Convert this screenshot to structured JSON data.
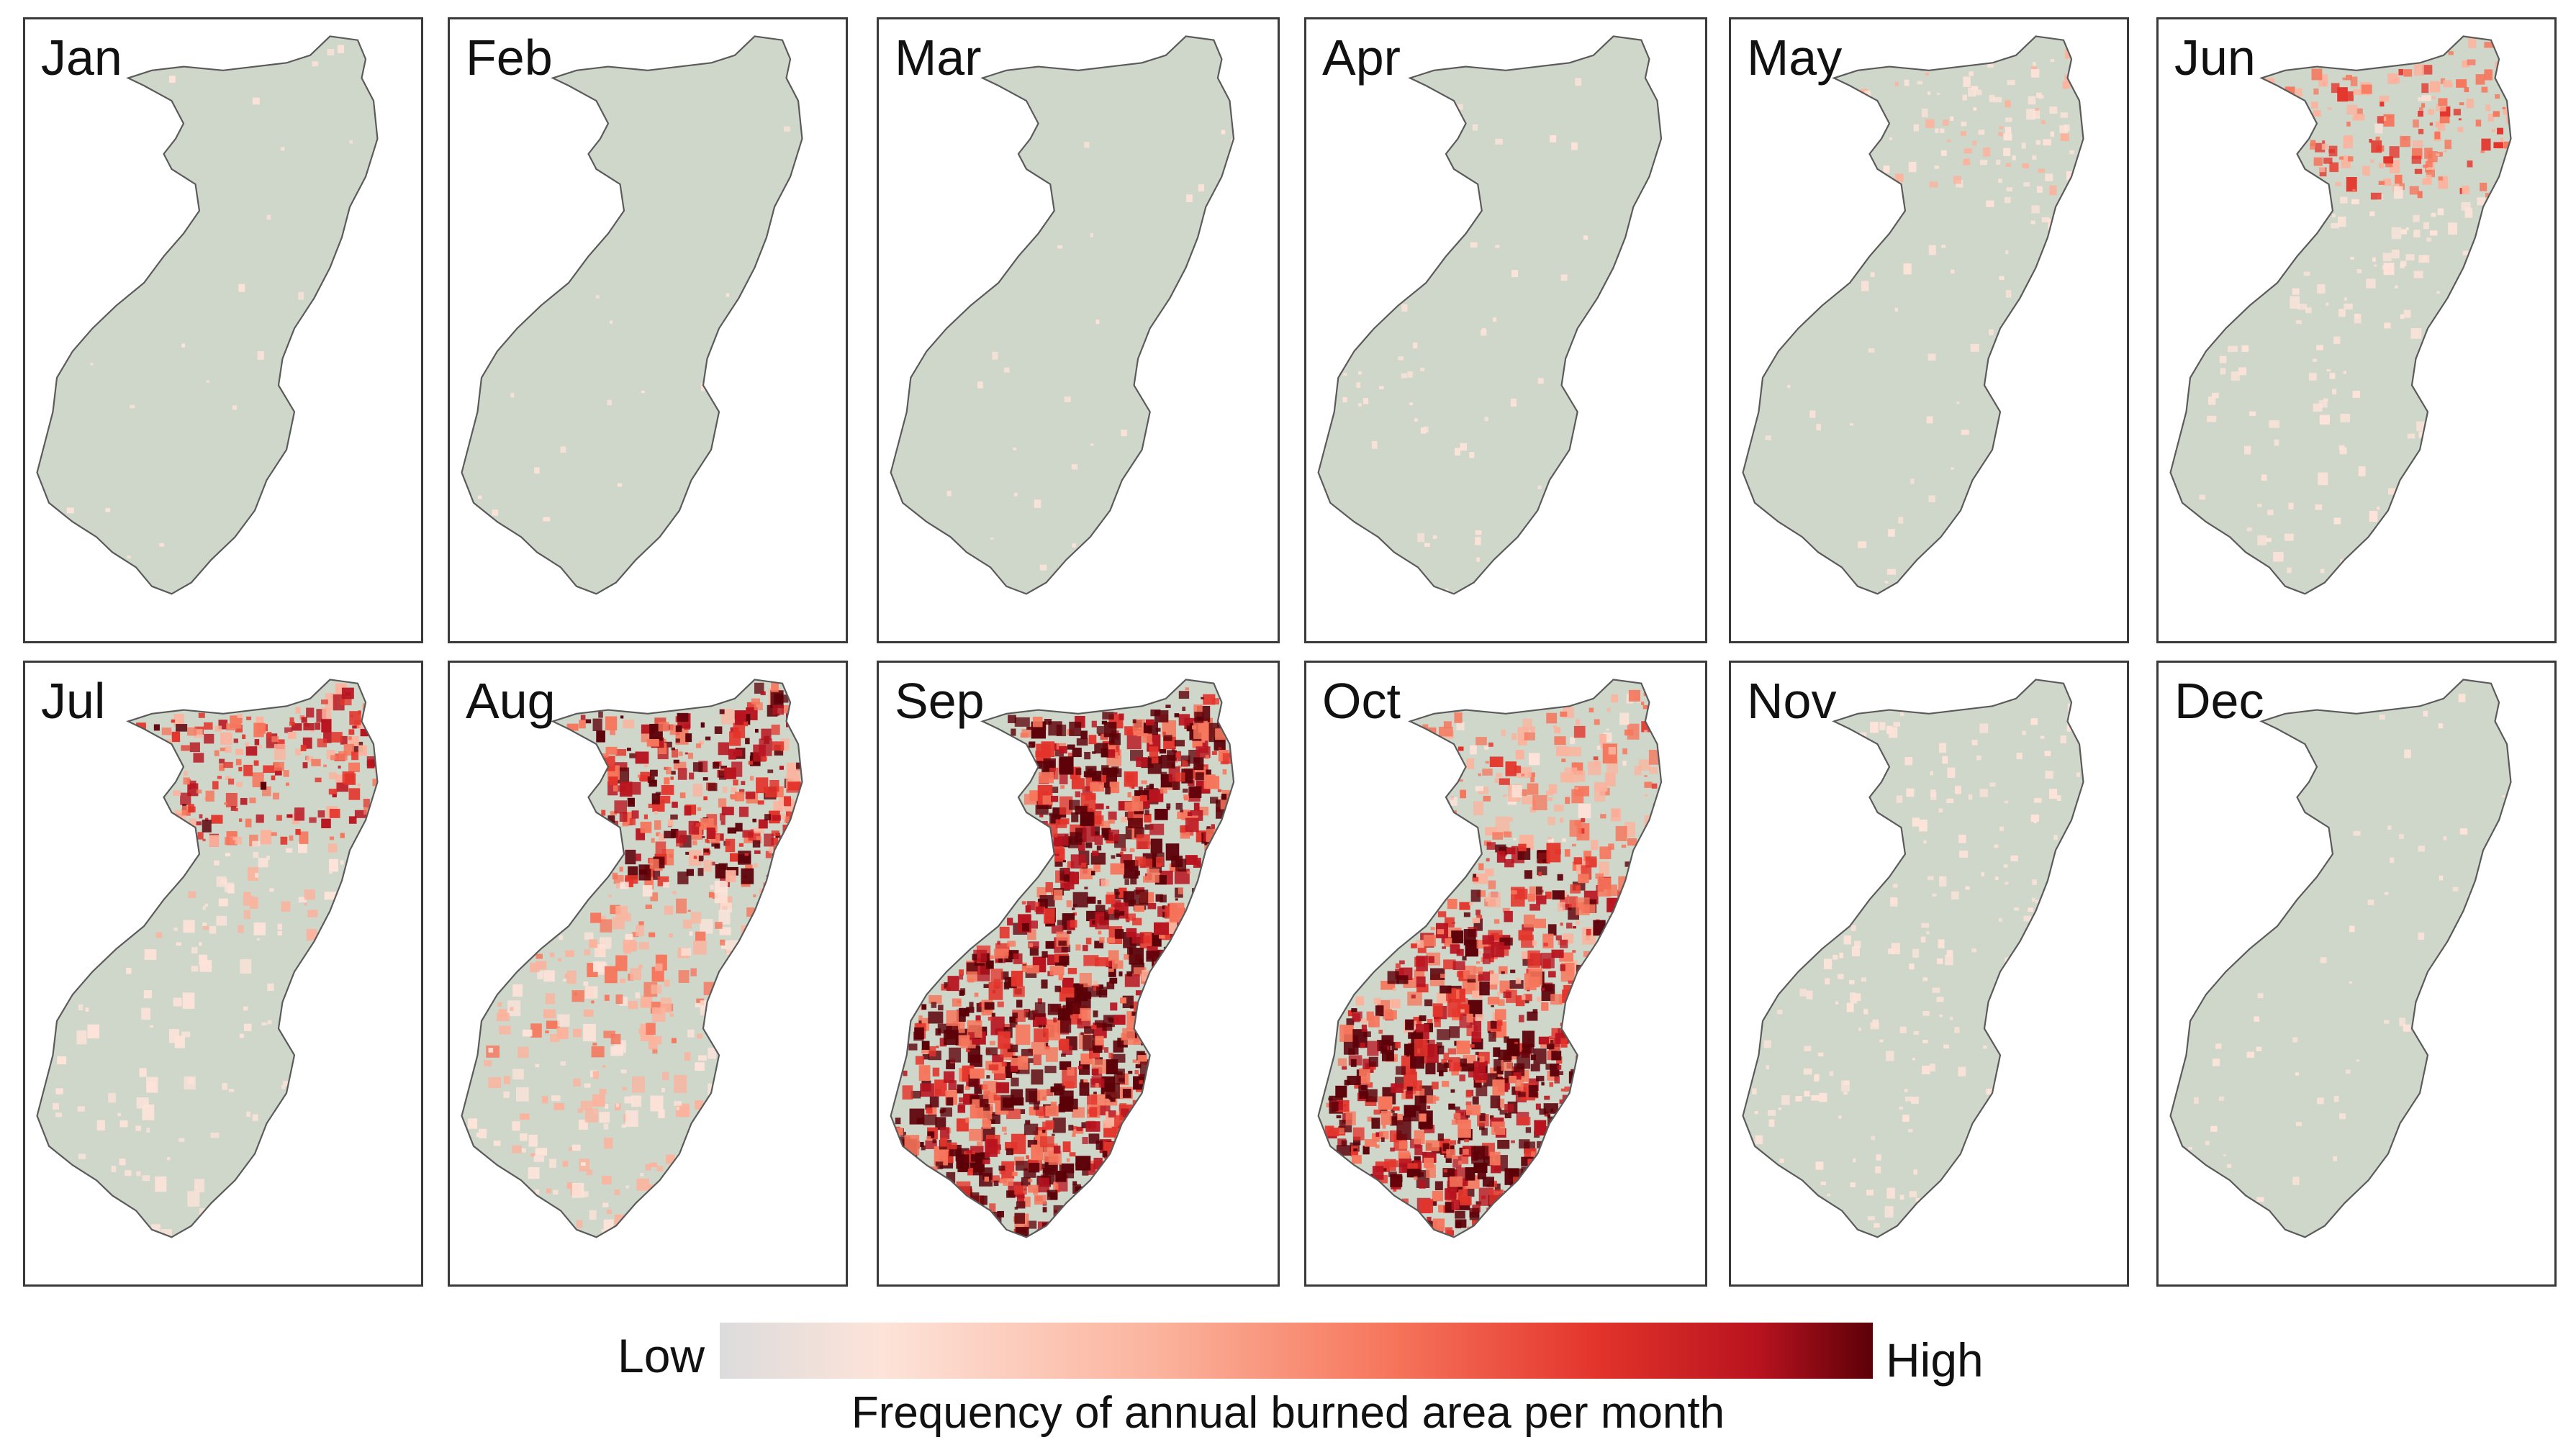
{
  "panels": [
    {
      "month": "Jan",
      "level": 0.02,
      "pattern": "sparse"
    },
    {
      "month": "Feb",
      "level": 0.01,
      "pattern": "sparse"
    },
    {
      "month": "Mar",
      "level": 0.01,
      "pattern": "sparse"
    },
    {
      "month": "Apr",
      "level": 0.06,
      "pattern": "west"
    },
    {
      "month": "May",
      "level": 0.22,
      "pattern": "north"
    },
    {
      "month": "Jun",
      "level": 0.45,
      "pattern": "north"
    },
    {
      "month": "Jul",
      "level": 0.6,
      "pattern": "north"
    },
    {
      "month": "Aug",
      "level": 0.75,
      "pattern": "north-wide"
    },
    {
      "month": "Sep",
      "level": 0.95,
      "pattern": "all"
    },
    {
      "month": "Oct",
      "level": 0.9,
      "pattern": "south"
    },
    {
      "month": "Nov",
      "level": 0.2,
      "pattern": "spread"
    },
    {
      "month": "Dec",
      "level": 0.06,
      "pattern": "sparse"
    }
  ],
  "colors": {
    "region_fill": "#cfd7cb",
    "region_outline": "#5a5a5a",
    "scale": [
      "#dcdcdc",
      "#fde3d9",
      "#fbb39d",
      "#f6765c",
      "#e3342b",
      "#b8131f",
      "#5c0008"
    ]
  },
  "legend": {
    "low_label": "Low",
    "high_label": "High",
    "title": "Frequency of annual burned area per month"
  }
}
